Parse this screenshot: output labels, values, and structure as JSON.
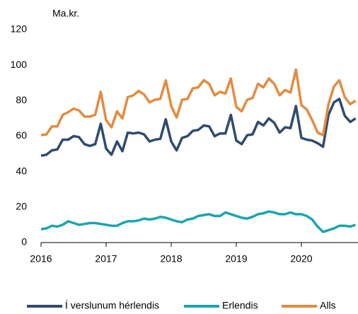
{
  "chart_data": {
    "type": "line",
    "y_axis_label": "Ma.kr.",
    "x": [
      2016,
      2016.083,
      2016.167,
      2016.25,
      2016.333,
      2016.417,
      2016.5,
      2016.583,
      2016.667,
      2016.75,
      2016.833,
      2016.917,
      2017,
      2017.083,
      2017.167,
      2017.25,
      2017.333,
      2017.417,
      2017.5,
      2017.583,
      2017.667,
      2017.75,
      2017.833,
      2017.917,
      2018,
      2018.083,
      2018.167,
      2018.25,
      2018.333,
      2018.417,
      2018.5,
      2018.583,
      2018.667,
      2018.75,
      2018.833,
      2018.917,
      2019,
      2019.083,
      2019.167,
      2019.25,
      2019.333,
      2019.417,
      2019.5,
      2019.583,
      2019.667,
      2019.75,
      2019.833,
      2019.917,
      2020,
      2020.083,
      2020.167,
      2020.25,
      2020.333,
      2020.417,
      2020.5,
      2020.583,
      2020.667,
      2020.75,
      2020.833
    ],
    "series": [
      {
        "name": "Í verslunum hérlendis",
        "color": "#2f4b6e",
        "values": [
          49,
          49.5,
          52,
          52.5,
          58,
          58,
          60,
          59.5,
          55.5,
          54.5,
          55.5,
          67,
          53,
          49.5,
          57,
          51.5,
          62,
          61.5,
          62,
          61,
          57,
          58,
          58.5,
          69.5,
          57,
          52,
          59,
          60,
          63,
          63.5,
          66,
          65.5,
          60,
          61.5,
          61.5,
          72,
          57.5,
          55.5,
          60.5,
          61,
          68,
          66,
          70,
          67.5,
          62,
          65,
          64.5,
          77,
          59,
          58,
          57.5,
          56,
          54,
          72,
          79,
          81,
          71.5,
          68,
          70
        ]
      },
      {
        "name": "Erlendis",
        "color": "#1ca4b0",
        "values": [
          7.5,
          8,
          9.5,
          9,
          10,
          12,
          11,
          10,
          10.5,
          11,
          11,
          10.5,
          10,
          9.5,
          9.5,
          11,
          12,
          12,
          12.5,
          13.5,
          13,
          13.5,
          14.5,
          14,
          13,
          12,
          11.5,
          13,
          13.5,
          15,
          15.5,
          16,
          15,
          15,
          17,
          16,
          15,
          14,
          13.5,
          14.5,
          16,
          16.5,
          17.5,
          17,
          16,
          16,
          17,
          16,
          16,
          15,
          13,
          9,
          6,
          7,
          8,
          9.5,
          9.5,
          9,
          10
        ]
      },
      {
        "name": "Alls",
        "color": "#e38b40",
        "values": [
          60.5,
          61,
          65.5,
          65.5,
          72,
          73.5,
          75.5,
          74.5,
          71,
          71,
          72,
          85,
          69,
          65,
          74,
          70,
          82,
          83,
          85.5,
          83.5,
          79,
          80.5,
          81,
          91.5,
          77,
          70.5,
          80.5,
          81,
          87,
          87.5,
          91.5,
          89.5,
          83,
          85,
          84,
          92.5,
          76.5,
          74,
          80.5,
          81.5,
          89.5,
          87.5,
          92.5,
          89.5,
          83,
          86,
          84.5,
          97.5,
          77.5,
          75,
          69,
          62,
          60.5,
          78,
          88,
          91.5,
          82,
          78,
          80
        ]
      }
    ],
    "xlim": [
      2016,
      2020.87
    ],
    "xticks": [
      2016,
      2017,
      2018,
      2019,
      2020
    ],
    "ylim": [
      0,
      120
    ],
    "yticks": [
      0,
      20,
      40,
      60,
      80,
      100,
      120
    ],
    "legend": "bottom",
    "grid": false
  }
}
